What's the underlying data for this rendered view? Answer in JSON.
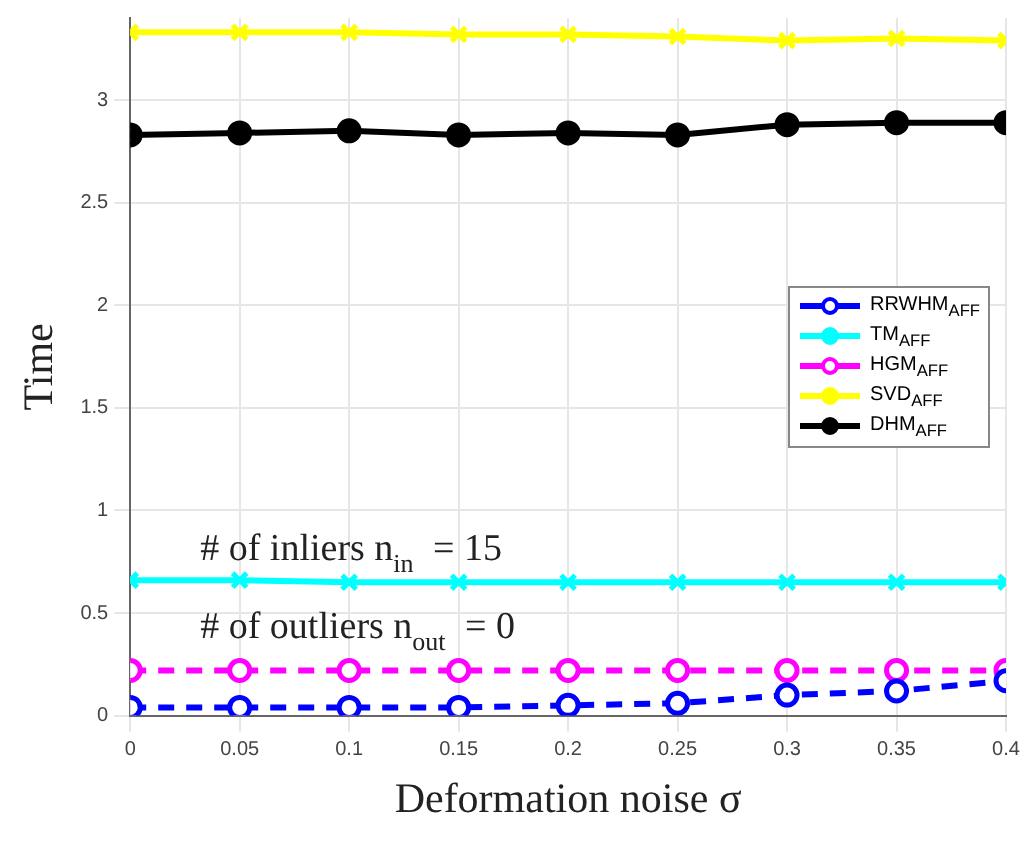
{
  "chart_data": {
    "type": "line",
    "xlabel": "Deformation noise σ",
    "ylabel": "Time",
    "x": [
      0,
      0.05,
      0.1,
      0.15,
      0.2,
      0.25,
      0.3,
      0.35,
      0.4
    ],
    "xlim": [
      0,
      0.4
    ],
    "xticks": [
      0,
      0.05,
      0.1,
      0.15,
      0.2,
      0.25,
      0.3,
      0.35,
      0.4
    ],
    "ylim": [
      0,
      3.4
    ],
    "yticks": [
      0,
      0.5,
      1,
      1.5,
      2,
      2.5,
      3
    ],
    "grid": true,
    "legend": "right",
    "annotations": [
      "# of inliers n$_{in}$ = 15",
      "# of outliers n$_{out}$ = 0"
    ],
    "series": [
      {
        "name": "RRWHM$_{AFF}$",
        "color": "#0000ff",
        "marker": "circle",
        "line_style": "dashed",
        "values": [
          0.04,
          0.04,
          0.04,
          0.04,
          0.05,
          0.06,
          0.1,
          0.12,
          0.17
        ]
      },
      {
        "name": "TM$_{AFF}$",
        "color": "#00ffff",
        "marker": "cross",
        "line_style": "solid",
        "values": [
          0.66,
          0.66,
          0.65,
          0.65,
          0.65,
          0.65,
          0.65,
          0.65,
          0.65
        ]
      },
      {
        "name": "HGM$_{AFF}$",
        "color": "#ff00ff",
        "marker": "circle",
        "line_style": "dashed",
        "values": [
          0.22,
          0.22,
          0.22,
          0.22,
          0.22,
          0.22,
          0.22,
          0.22,
          0.22
        ]
      },
      {
        "name": "SVD$_{AFF}$",
        "color": "#ffff00",
        "marker": "cross",
        "line_style": "solid",
        "values": [
          3.33,
          3.33,
          3.33,
          3.32,
          3.32,
          3.31,
          3.29,
          3.3,
          3.29
        ]
      },
      {
        "name": "DHM$_{AFF}$",
        "color": "#000000",
        "marker": "circle",
        "line_style": "solid",
        "values": [
          2.83,
          2.84,
          2.85,
          2.83,
          2.84,
          2.83,
          2.88,
          2.89,
          2.89
        ]
      }
    ]
  }
}
